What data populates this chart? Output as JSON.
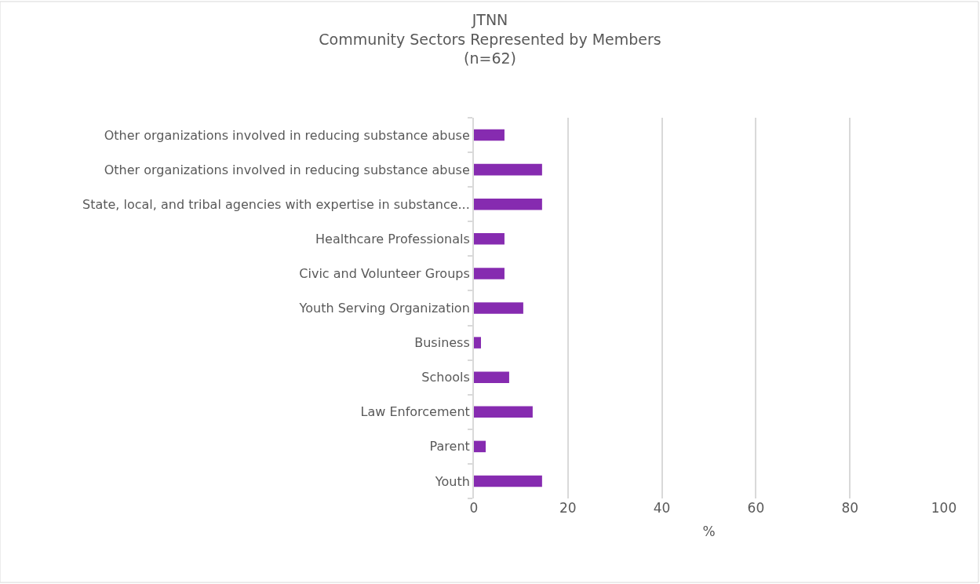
{
  "chart_data": {
    "type": "bar",
    "orientation": "horizontal",
    "title": "JTNN\nCommunity Sectors Represented by Members\n(n=62)",
    "xlabel": "%",
    "categories": [
      "Other organizations involved in reducing substance abuse",
      "Other organizations involved in reducing substance abuse",
      "State, local, and tribal agencies with expertise in substance...",
      "Healthcare Professionals",
      "Civic and Volunteer Groups",
      "Youth Serving Organization",
      "Business",
      "Schools",
      "Law Enforcement",
      "Parent",
      "Youth"
    ],
    "values": [
      6.5,
      14.5,
      14.5,
      6.5,
      6.5,
      10.5,
      1.5,
      7.5,
      12.5,
      2.5,
      14.5
    ],
    "color": "#862bb0",
    "xlim": [
      0,
      100
    ],
    "xticks": [
      0,
      20,
      40,
      60,
      80,
      100
    ],
    "grid": "x",
    "legend": false
  }
}
